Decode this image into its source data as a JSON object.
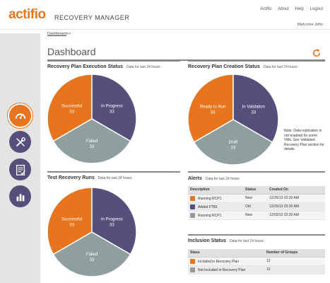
{
  "header": {
    "logo": "actifio",
    "app_title": "RECOVERY MANAGER",
    "nav": [
      "Actifio",
      "About",
      "Help",
      "Logout"
    ],
    "welcome": "Welcome John"
  },
  "breadcrumb": "Dashboard",
  "breadcrumb_suffix": ">>",
  "page_title": "Dashboard",
  "sidebar": {
    "items": [
      {
        "icon": "gauge-icon",
        "active": true
      },
      {
        "icon": "tools-icon",
        "active": false
      },
      {
        "icon": "checklist-icon",
        "active": false
      },
      {
        "icon": "bar-chart-icon",
        "active": false
      }
    ]
  },
  "panels": {
    "execution": {
      "title": "Recovery Plan Execution Status",
      "sub": "Data for last 24 hours"
    },
    "creation": {
      "title": "Recovery Plan Creation Status",
      "sub": "Data for last 24 hours"
    },
    "test": {
      "title": "Test Recovery Runs",
      "sub": "Data for last 24 hours"
    },
    "alerts": {
      "title": "Alerts",
      "sub": "Data for last 24 hours"
    },
    "inclusion": {
      "title": "Inclusion Status",
      "sub": "Data for last 24 hours"
    }
  },
  "note": "Note: Data replication is not enabled for some VMs. See Validated Recovery Plan section for details.",
  "chart_data": [
    {
      "type": "pie",
      "title": "Recovery Plan Execution Status",
      "categories": [
        "Successful",
        "In Progress",
        "Failed"
      ],
      "values": [
        33,
        33,
        33
      ],
      "colors": [
        "#e8741e",
        "#554f7c",
        "#8f9e9e"
      ]
    },
    {
      "type": "pie",
      "title": "Recovery Plan Creation Status",
      "categories": [
        "Ready to Run",
        "In Validation",
        "Draft"
      ],
      "values": [
        33,
        33,
        33
      ],
      "colors": [
        "#e8741e",
        "#554f7c",
        "#8f9e9e"
      ]
    },
    {
      "type": "pie",
      "title": "Test Recovery Runs",
      "categories": [
        "Successful",
        "In Progress",
        "Failed"
      ],
      "values": [
        33,
        33,
        33
      ],
      "colors": [
        "#e8741e",
        "#554f7c",
        "#8f9e9e"
      ]
    }
  ],
  "alerts_table": {
    "headers": [
      "Description",
      "Status",
      "Created On"
    ],
    "rows": [
      {
        "icon": "run",
        "description": "Running RCP1",
        "status": "New",
        "created": "12/25/13 02:30 AM"
      },
      {
        "icon": "add",
        "description": "Added FTB1",
        "status": "Old",
        "created": "12/25/13 02:30 AM"
      },
      {
        "icon": "grey",
        "description": "Running RCP1",
        "status": "New",
        "created": "12/03/13 02:30 AM"
      }
    ]
  },
  "inclusion_table": {
    "headers": [
      "Staus",
      "Number of Groups"
    ],
    "rows": [
      {
        "icon": "inc",
        "status": "Included in Recovery Plan",
        "count": "12"
      },
      {
        "icon": "ninc",
        "status": "Not Included in Recovery Plan",
        "count": "12"
      }
    ]
  },
  "colors": {
    "accent": "#e8741e",
    "purple": "#554f7c",
    "grey": "#8f9e9e"
  }
}
